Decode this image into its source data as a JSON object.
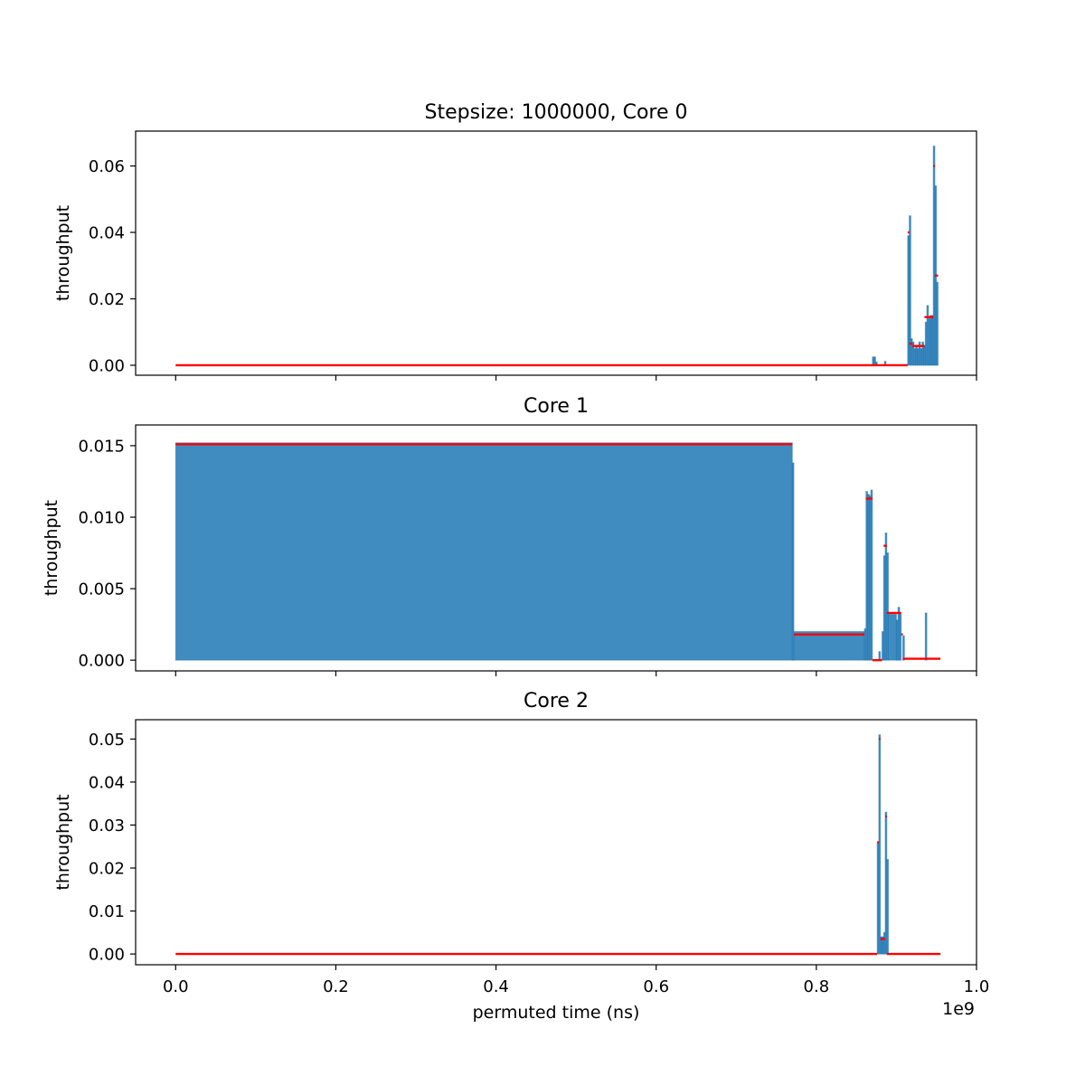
{
  "figure": {
    "xlabel": "permuted time (ns)",
    "x_offset_label": "1e9",
    "x_ticks": [
      "0.0",
      "0.2",
      "0.4",
      "0.6",
      "0.8",
      "1.0"
    ],
    "colors": {
      "bar": "#1f77b4",
      "step_line": "#ff0000"
    }
  },
  "chart_data": [
    {
      "type": "bar",
      "title": "Stepsize: 1000000, Core 0",
      "ylabel": "throughput",
      "xlim": [
        -0.05,
        1.0
      ],
      "ylim": [
        -0.003,
        0.0705
      ],
      "y_ticks": [
        "0.00",
        "0.02",
        "0.04",
        "0.06"
      ],
      "x_unit_scale": "1e9 ns",
      "bars": [
        [
          0.87,
          0.872,
          0.0025
        ],
        [
          0.872,
          0.874,
          0.0025
        ],
        [
          0.874,
          0.876,
          0.001
        ],
        [
          0.885,
          0.887,
          0.0012
        ],
        [
          0.914,
          0.916,
          0.039
        ],
        [
          0.916,
          0.918,
          0.045
        ],
        [
          0.918,
          0.92,
          0.008
        ],
        [
          0.92,
          0.922,
          0.007
        ],
        [
          0.922,
          0.924,
          0.005
        ],
        [
          0.924,
          0.926,
          0.006
        ],
        [
          0.926,
          0.928,
          0.005
        ],
        [
          0.928,
          0.93,
          0.007
        ],
        [
          0.93,
          0.932,
          0.005
        ],
        [
          0.932,
          0.934,
          0.007
        ],
        [
          0.934,
          0.936,
          0.006
        ],
        [
          0.936,
          0.938,
          0.013
        ],
        [
          0.938,
          0.94,
          0.018
        ],
        [
          0.94,
          0.942,
          0.014
        ],
        [
          0.942,
          0.944,
          0.015
        ],
        [
          0.944,
          0.946,
          0.015
        ],
        [
          0.946,
          0.948,
          0.066
        ],
        [
          0.948,
          0.95,
          0.054
        ],
        [
          0.95,
          0.952,
          0.025
        ]
      ],
      "step_line": [
        [
          0.0,
          0.914,
          0.0
        ],
        [
          0.914,
          0.916,
          0.04
        ],
        [
          0.916,
          0.92,
          0.0065
        ],
        [
          0.92,
          0.935,
          0.0058
        ],
        [
          0.935,
          0.946,
          0.0145
        ],
        [
          0.946,
          0.948,
          0.06
        ],
        [
          0.948,
          0.952,
          0.027
        ]
      ]
    },
    {
      "type": "bar",
      "title": "Core 1",
      "ylabel": "throughput",
      "xlim": [
        -0.05,
        1.0
      ],
      "ylim": [
        -0.00075,
        0.01645
      ],
      "y_ticks": [
        "0.000",
        "0.005",
        "0.010",
        "0.015"
      ],
      "x_unit_scale": "1e9 ns",
      "bars": [
        [
          0.0,
          0.77,
          0.0152
        ],
        [
          0.77,
          0.772,
          0.0138
        ],
        [
          0.772,
          0.86,
          0.002
        ],
        [
          0.86,
          0.862,
          0.0022
        ],
        [
          0.862,
          0.864,
          0.0118
        ],
        [
          0.864,
          0.866,
          0.0116
        ],
        [
          0.866,
          0.868,
          0.0115
        ],
        [
          0.868,
          0.87,
          0.0119
        ],
        [
          0.878,
          0.88,
          0.0006
        ],
        [
          0.882,
          0.884,
          0.002
        ],
        [
          0.884,
          0.886,
          0.0073
        ],
        [
          0.886,
          0.888,
          0.0089
        ],
        [
          0.888,
          0.89,
          0.0075
        ],
        [
          0.89,
          0.9,
          0.0032
        ],
        [
          0.9,
          0.902,
          0.0028
        ],
        [
          0.902,
          0.904,
          0.0037
        ],
        [
          0.904,
          0.906,
          0.0032
        ],
        [
          0.908,
          0.91,
          0.0017
        ],
        [
          0.936,
          0.938,
          0.0033
        ]
      ],
      "step_line": [
        [
          0.0,
          0.77,
          0.0151
        ],
        [
          0.772,
          0.86,
          0.0018
        ],
        [
          0.862,
          0.87,
          0.0113
        ],
        [
          0.87,
          0.882,
          0.0
        ],
        [
          0.884,
          0.888,
          0.008
        ],
        [
          0.888,
          0.9,
          0.0033
        ],
        [
          0.9,
          0.906,
          0.0033
        ],
        [
          0.906,
          0.908,
          0.0018
        ],
        [
          0.908,
          0.955,
          0.0001
        ]
      ]
    },
    {
      "type": "bar",
      "title": "Core 2",
      "ylabel": "throughput",
      "xlim": [
        -0.05,
        1.0
      ],
      "ylim": [
        -0.0025,
        0.0545
      ],
      "y_ticks": [
        "0.00",
        "0.01",
        "0.02",
        "0.03",
        "0.04",
        "0.05"
      ],
      "x_unit_scale": "1e9 ns",
      "bars": [
        [
          0.876,
          0.878,
          0.026
        ],
        [
          0.878,
          0.88,
          0.051
        ],
        [
          0.88,
          0.882,
          0.004
        ],
        [
          0.882,
          0.884,
          0.004
        ],
        [
          0.884,
          0.886,
          0.005
        ],
        [
          0.886,
          0.888,
          0.033
        ],
        [
          0.888,
          0.89,
          0.022
        ]
      ],
      "step_line": [
        [
          0.0,
          0.876,
          0.0
        ],
        [
          0.876,
          0.878,
          0.026
        ],
        [
          0.878,
          0.88,
          0.05
        ],
        [
          0.88,
          0.886,
          0.0035
        ],
        [
          0.886,
          0.888,
          0.032
        ],
        [
          0.888,
          0.955,
          0.0
        ]
      ]
    }
  ]
}
